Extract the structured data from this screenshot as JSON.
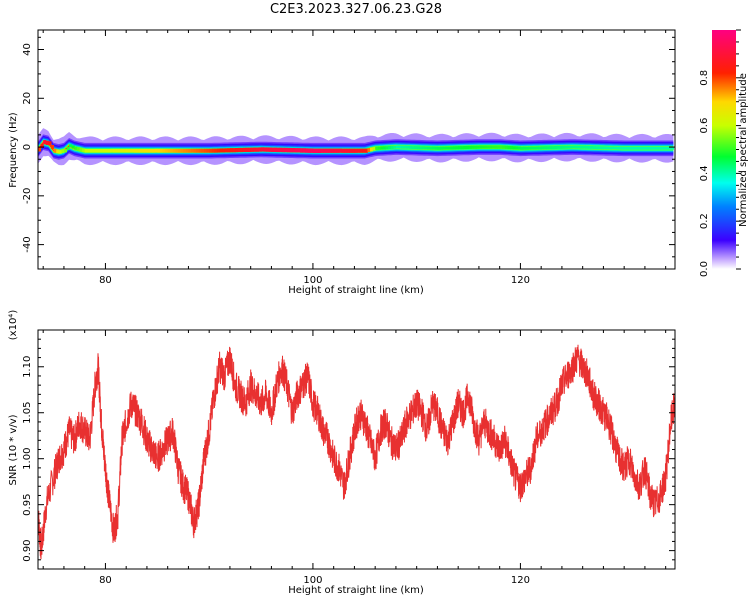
{
  "title": "C2E3.2023.327.06.23.G28",
  "chart_data": [
    {
      "type": "heatmap",
      "xlabel": "Height of straight line (km)",
      "ylabel": "Frequency (Hz)",
      "xlim": [
        73.5,
        134.9
      ],
      "ylim": [
        -50,
        48
      ],
      "xticks": [
        80,
        100,
        120
      ],
      "yticks": [
        -40,
        -20,
        0,
        20,
        40
      ],
      "ridge": {
        "x": [
          73.5,
          74.0,
          74.5,
          75.0,
          75.5,
          76.0,
          76.5,
          77.0,
          77.5,
          78.0,
          80,
          85,
          90,
          95,
          100,
          105,
          106,
          108,
          112,
          116,
          118,
          120,
          125,
          130,
          134
        ],
        "freq": [
          -1.0,
          2.0,
          1.5,
          -1.5,
          -2.0,
          -1.5,
          0.5,
          -0.5,
          -1.0,
          -1.5,
          -1.5,
          -1.5,
          -1.5,
          -1.0,
          -1.5,
          -1.5,
          -0.5,
          0.0,
          -0.5,
          0.0,
          0.0,
          -0.5,
          0.0,
          -0.5,
          -0.5
        ],
        "strength": [
          0.8,
          0.9,
          0.85,
          0.75,
          0.6,
          0.55,
          0.45,
          0.5,
          0.55,
          0.6,
          0.62,
          0.7,
          0.8,
          0.9,
          0.95,
          0.85,
          0.5,
          0.4,
          0.45,
          0.48,
          0.5,
          0.45,
          0.42,
          0.4,
          0.4
        ]
      },
      "colorbar": {
        "label": "Normalized spectral amplitude",
        "ticks": [
          "0.0",
          "0.2",
          "0.4",
          "0.6",
          "0.8"
        ],
        "range": [
          0,
          1
        ]
      }
    },
    {
      "type": "line",
      "xlabel": "Height of straight line (km)",
      "ylabel": "SNR (10 * v/v)",
      "exponent_label": "(x10⁴)",
      "xlim": [
        73.5,
        134.9
      ],
      "ylim": [
        0.88,
        1.14
      ],
      "xticks": [
        80,
        100,
        120
      ],
      "yticks": [
        "0.90",
        "0.95",
        "1.00",
        "1.05",
        "1.10"
      ],
      "color": "#e83030",
      "series": [
        {
          "x": [
            73.5,
            73.8,
            74.3,
            75.0,
            75.5,
            76.0,
            76.5,
            77.0,
            77.5,
            78.0,
            78.5,
            79.0,
            79.3,
            79.6,
            79.9,
            80.3,
            80.8,
            81.2,
            81.6,
            82.0,
            82.5,
            83.0,
            83.5,
            84.0,
            84.5,
            85.0,
            85.5,
            86.0,
            86.5,
            87.0,
            87.5,
            88.0,
            88.5,
            89.0,
            89.5,
            90.0,
            90.5,
            91.0,
            91.5,
            92.0,
            92.5,
            93.0,
            93.5,
            94.0,
            94.5,
            95.0,
            95.5,
            96.0,
            96.5,
            97.0,
            97.5,
            98.0,
            98.5,
            99.0,
            99.5,
            100.0,
            100.5,
            101.0,
            101.5,
            102.0,
            102.5,
            103.0,
            103.5,
            104.0,
            104.5,
            105.0,
            105.5,
            106.0,
            106.5,
            107.0,
            107.5,
            108.0,
            108.5,
            109.0,
            109.5,
            110.0,
            110.5,
            111.0,
            111.5,
            112.0,
            112.5,
            113.0,
            113.5,
            114.0,
            114.5,
            115.0,
            115.5,
            116.0,
            116.5,
            117.0,
            117.5,
            118.0,
            118.5,
            119.0,
            119.5,
            120.0,
            120.5,
            121.0,
            121.5,
            122.0,
            122.5,
            123.0,
            123.5,
            124.0,
            124.5,
            125.0,
            125.5,
            126.0,
            126.5,
            127.0,
            127.5,
            128.0,
            128.5,
            129.0,
            129.5,
            130.0,
            130.5,
            131.0,
            131.5,
            132.0,
            132.5,
            133.0,
            133.5,
            134.0,
            134.5,
            134.9
          ],
          "y": [
            0.94,
            0.9,
            0.95,
            0.98,
            1.0,
            1.01,
            1.03,
            1.02,
            1.04,
            1.03,
            1.02,
            1.08,
            1.1,
            1.04,
            1.0,
            0.96,
            0.92,
            0.94,
            1.02,
            1.04,
            1.06,
            1.05,
            1.04,
            1.02,
            1.01,
            1.0,
            1.01,
            1.02,
            1.03,
            0.99,
            0.97,
            0.96,
            0.93,
            0.95,
            1.0,
            1.03,
            1.07,
            1.1,
            1.09,
            1.11,
            1.08,
            1.07,
            1.06,
            1.08,
            1.07,
            1.06,
            1.07,
            1.05,
            1.08,
            1.1,
            1.08,
            1.05,
            1.07,
            1.08,
            1.09,
            1.06,
            1.05,
            1.03,
            1.02,
            1.0,
            0.99,
            0.97,
            1.0,
            1.03,
            1.05,
            1.04,
            1.02,
            1.0,
            1.03,
            1.04,
            1.02,
            1.01,
            1.02,
            1.04,
            1.05,
            1.06,
            1.05,
            1.03,
            1.06,
            1.05,
            1.03,
            1.02,
            1.04,
            1.06,
            1.05,
            1.07,
            1.04,
            1.02,
            1.04,
            1.03,
            1.02,
            1.01,
            1.02,
            1.0,
            0.98,
            0.97,
            0.98,
            0.99,
            1.02,
            1.03,
            1.04,
            1.05,
            1.06,
            1.08,
            1.09,
            1.1,
            1.11,
            1.1,
            1.09,
            1.07,
            1.06,
            1.05,
            1.04,
            1.02,
            1.0,
            0.99,
            1.0,
            0.98,
            0.97,
            0.99,
            0.96,
            0.95,
            0.96,
            0.98,
            1.04,
            1.06
          ]
        }
      ]
    }
  ]
}
